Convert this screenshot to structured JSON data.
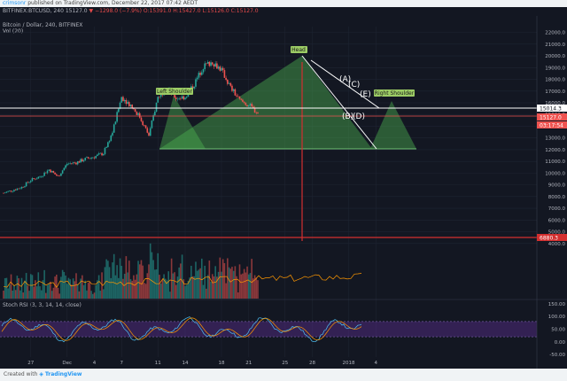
{
  "header": {
    "user": "crimsonr",
    "published": " published on TradingView.com, December 22, 2017 07:42 AEDT",
    "symbol": "BITFINEX:BTCUSD, 240",
    "last": "15127.0",
    "change": "−1298.0 (−7.9%)",
    "ohlc": "O:15391.0 H:15427.0 L:15126.0 C:15127.0"
  },
  "chart_title": "Bitcoin / Dollar, 240, BITFINEX",
  "volume_title": "Vol (20)",
  "rsi_title": "Stoch RSI (3, 3, 14, 14, close)",
  "footer": {
    "created_with": "Created with",
    "brand": "TradingView"
  },
  "annotations": {
    "head": "Head",
    "left_shoulder": "Left Shoulder",
    "right_shoulder": "Right Shoulder",
    "wave_a": "(A)",
    "wave_b": "(B)",
    "wave_c": "(C)",
    "wave_d": "(D)",
    "wave_e": "(E)"
  },
  "price_labels": {
    "current": "15014.3",
    "last": "15127.0",
    "countdown": "03:17:54",
    "target": "6880.3"
  },
  "colors": {
    "bg": "#131722",
    "up": "#26a69a",
    "down": "#ef5350",
    "pattern_fill": "#4caf50",
    "target_line": "#d32f2f",
    "rsi_band": "#5b2f91",
    "rsi_k": "#4fc3f7",
    "rsi_d": "#ff9800"
  },
  "chart_data": [
    {
      "type": "candlestick",
      "title": "Bitcoin / Dollar, 240, BITFINEX",
      "x_tick_labels": [
        "27",
        "Dec",
        "4",
        "7",
        "11",
        "14",
        "18",
        "21",
        "25",
        "28",
        "2018",
        "4"
      ],
      "y_ticks": [
        4000,
        5000,
        6000,
        7000,
        8000,
        9000,
        10000,
        11000,
        12000,
        13000,
        14000,
        15000,
        16000,
        17000,
        18000,
        19000,
        20000,
        21000,
        22000
      ],
      "ylim": [
        3000,
        22500
      ],
      "close_path": [
        [
          "Nov 24",
          8300
        ],
        [
          "Nov 26",
          8800
        ],
        [
          "Nov 27",
          9400
        ],
        [
          "Nov 28",
          9700
        ],
        [
          "Nov 29",
          10300
        ],
        [
          "Nov 30",
          9700
        ],
        [
          "Dec 1",
          10800
        ],
        [
          "Dec 2",
          10900
        ],
        [
          "Dec 3",
          11200
        ],
        [
          "Dec 4",
          11400
        ],
        [
          "Dec 5",
          11700
        ],
        [
          "Dec 6",
          13500
        ],
        [
          "Dec 7",
          16500
        ],
        [
          "Dec 8",
          15800
        ],
        [
          "Dec 9",
          14800
        ],
        [
          "Dec 10",
          13200
        ],
        [
          "Dec 11",
          16500
        ],
        [
          "Dec 12",
          17300
        ],
        [
          "Dec 13",
          16400
        ],
        [
          "Dec 14",
          16500
        ],
        [
          "Dec 15",
          17600
        ],
        [
          "Dec 16",
          19100
        ],
        [
          "Dec 17",
          19500
        ],
        [
          "Dec 18",
          18800
        ],
        [
          "Dec 19",
          17300
        ],
        [
          "Dec 20",
          16200
        ],
        [
          "Dec 21",
          15800
        ],
        [
          "Dec 22",
          15127
        ]
      ],
      "annotations": [
        "Head",
        "Left Shoulder",
        "Right Shoulder",
        "(A)",
        "(B)",
        "(C)",
        "(D)",
        "(E)"
      ],
      "horizontal_levels": [
        15014.3,
        6880.3
      ]
    },
    {
      "type": "bar",
      "title": "Vol (20)"
    },
    {
      "type": "line",
      "title": "Stoch RSI (3, 3, 14, 14, close)",
      "y_ticks": [
        150,
        100,
        50,
        0,
        -50
      ],
      "ylim": [
        -60,
        160
      ],
      "band": [
        20,
        80
      ]
    }
  ]
}
